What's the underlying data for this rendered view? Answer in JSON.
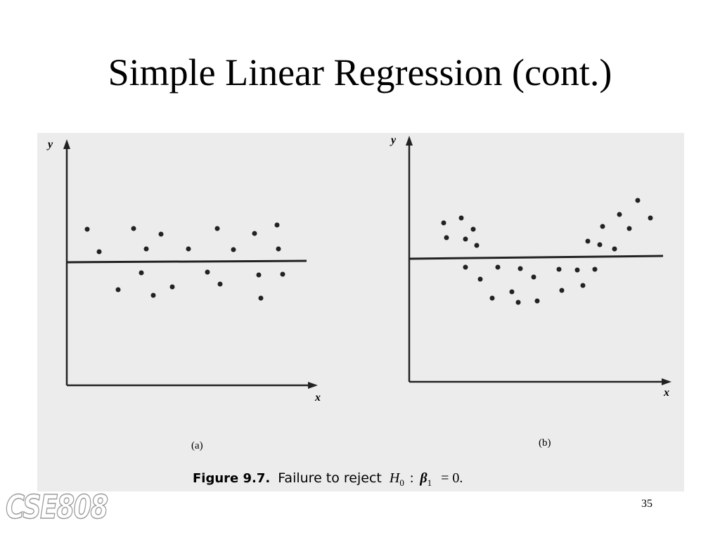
{
  "slide": {
    "title": "Simple Linear Regression (cont.)",
    "figure": {
      "panels": [
        {
          "label": "(a)",
          "x_axis": "x",
          "y_axis": "y"
        },
        {
          "label": "(b)",
          "x_axis": "x",
          "y_axis": "y"
        }
      ],
      "caption": {
        "label": "Figure 9.7.",
        "text": "Failure to reject",
        "symbol": "H",
        "symbol_sub": "0",
        "colon": ":",
        "beta": "β",
        "beta_sub": "1",
        "rest": "= 0."
      }
    },
    "page_number": "35",
    "logo": "CSE808"
  }
}
